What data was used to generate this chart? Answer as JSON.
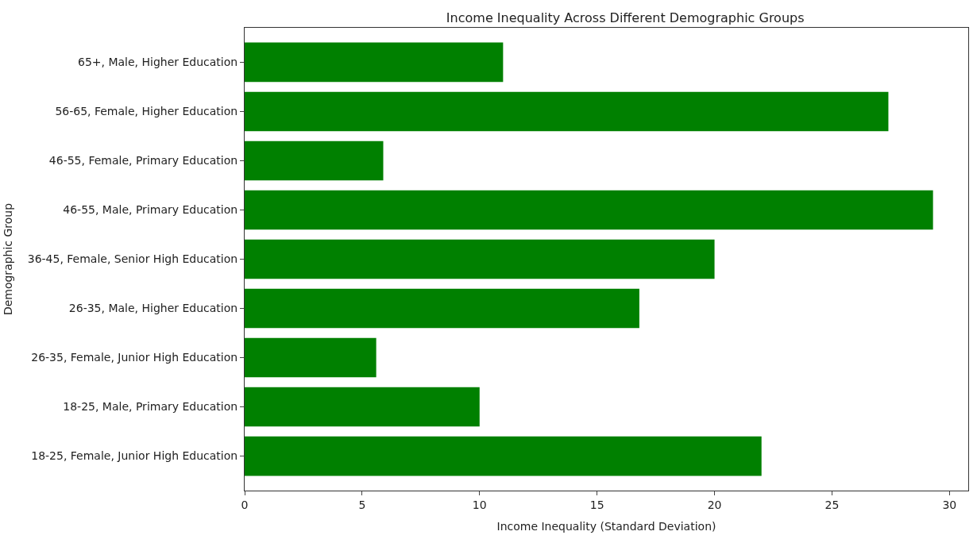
{
  "chart_data": {
    "type": "bar",
    "orientation": "horizontal",
    "title": "Income Inequality Across Different Demographic Groups",
    "xlabel": "Income Inequality (Standard Deviation)",
    "ylabel": "Demographic Group",
    "categories": [
      "65+, Male, Higher Education",
      "56-65, Female, Higher Education",
      "46-55, Female, Primary Education",
      "46-55, Male, Primary Education",
      "36-45, Female, Senior High Education",
      "26-35, Male, Higher Education",
      "26-35, Female, Junior High Education",
      "18-25, Male, Primary Education",
      "18-25, Female, Junior High Education"
    ],
    "values": [
      11.0,
      27.4,
      5.9,
      29.3,
      20.0,
      16.8,
      5.6,
      10.0,
      22.0
    ],
    "color": "#008000",
    "xlim": [
      0,
      30.8
    ],
    "xticks": [
      0,
      5,
      10,
      15,
      20,
      25,
      30
    ]
  }
}
